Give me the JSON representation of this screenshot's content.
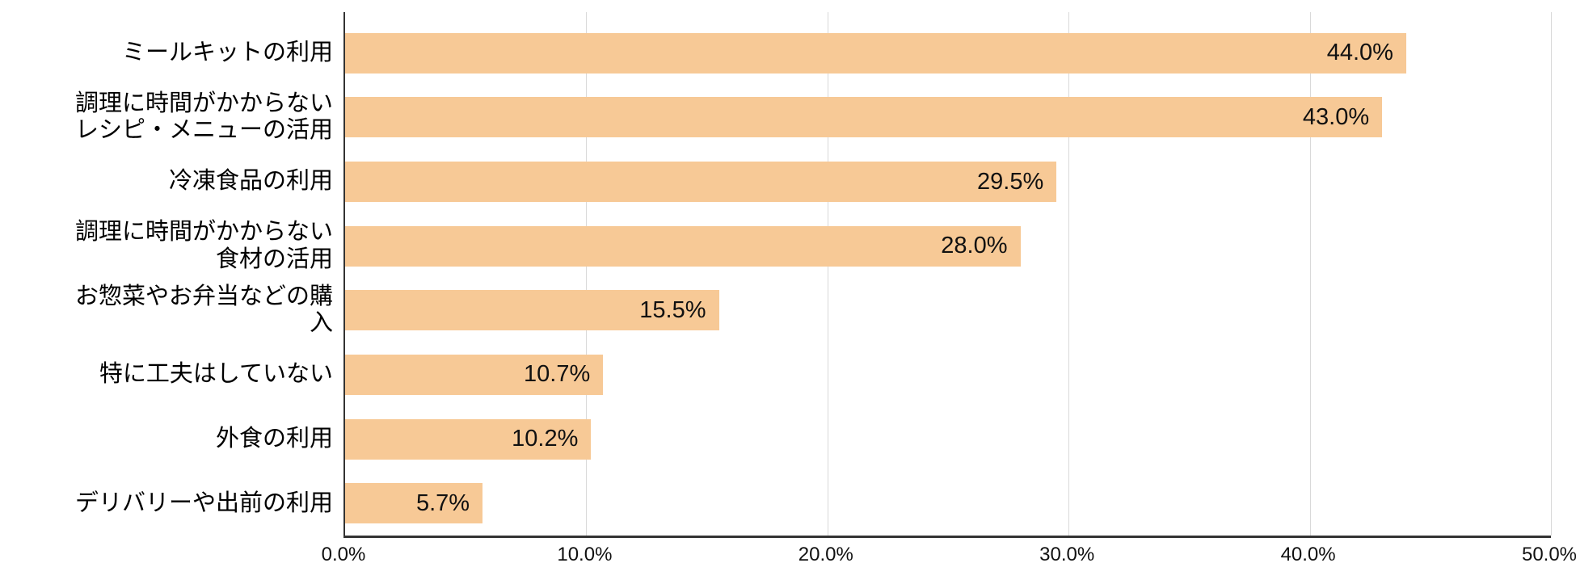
{
  "chart_data": {
    "type": "bar",
    "orientation": "horizontal",
    "title": "",
    "xlabel": "",
    "ylabel": "",
    "categories": [
      "ミールキットの利用",
      "調理に時間がかからないレシピ・メニューの活用",
      "冷凍食品の利用",
      "調理に時間がかからない食材の活用",
      "お惣菜やお弁当などの購入",
      "特に工夫はしていない",
      "外食の利用",
      "デリバリーや出前の利用"
    ],
    "category_display_lines": [
      [
        "ミールキットの利用"
      ],
      [
        "調理に時間がかからない",
        "レシピ・メニューの活用"
      ],
      [
        "冷凍食品の利用"
      ],
      [
        "調理に時間がかからない",
        "食材の活用"
      ],
      [
        "お惣菜やお弁当などの購",
        "入"
      ],
      [
        "特に工夫はしていない"
      ],
      [
        "外食の利用"
      ],
      [
        "デリバリーや出前の利用"
      ]
    ],
    "values": [
      44.0,
      43.0,
      29.5,
      28.0,
      15.5,
      10.7,
      10.2,
      5.7
    ],
    "value_labels": [
      "44.0%",
      "43.0%",
      "29.5%",
      "28.0%",
      "15.5%",
      "10.7%",
      "10.2%",
      "5.7%"
    ],
    "value_label_position": "inside-end",
    "xlim": [
      0,
      50
    ],
    "x_ticks": {
      "values": [
        0,
        10,
        20,
        30,
        40,
        50
      ],
      "labels": [
        "0.0%",
        "10.0%",
        "20.0%",
        "30.0%",
        "40.0%",
        "50.0%"
      ]
    },
    "grid": "vertical",
    "legend": "none",
    "colors": {
      "bar": "#f7c996",
      "gridline": "#d9d9d9",
      "axis": "#333333",
      "text": "#000000",
      "background": "#ffffff"
    }
  }
}
